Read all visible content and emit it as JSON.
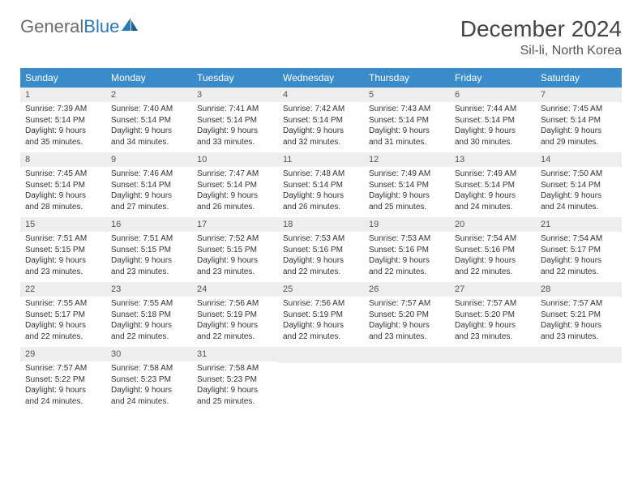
{
  "logo": {
    "word1": "General",
    "word2": "Blue"
  },
  "title": "December 2024",
  "location": "Sil-li, North Korea",
  "header_color": "#3a8bc9",
  "daynum_bg": "#eeeeee",
  "border_color": "#3a8bc9",
  "weekdays": [
    "Sunday",
    "Monday",
    "Tuesday",
    "Wednesday",
    "Thursday",
    "Friday",
    "Saturday"
  ],
  "weeks": [
    [
      {
        "n": "1",
        "sr": "7:39 AM",
        "ss": "5:14 PM",
        "dl": "9 hours and 35 minutes."
      },
      {
        "n": "2",
        "sr": "7:40 AM",
        "ss": "5:14 PM",
        "dl": "9 hours and 34 minutes."
      },
      {
        "n": "3",
        "sr": "7:41 AM",
        "ss": "5:14 PM",
        "dl": "9 hours and 33 minutes."
      },
      {
        "n": "4",
        "sr": "7:42 AM",
        "ss": "5:14 PM",
        "dl": "9 hours and 32 minutes."
      },
      {
        "n": "5",
        "sr": "7:43 AM",
        "ss": "5:14 PM",
        "dl": "9 hours and 31 minutes."
      },
      {
        "n": "6",
        "sr": "7:44 AM",
        "ss": "5:14 PM",
        "dl": "9 hours and 30 minutes."
      },
      {
        "n": "7",
        "sr": "7:45 AM",
        "ss": "5:14 PM",
        "dl": "9 hours and 29 minutes."
      }
    ],
    [
      {
        "n": "8",
        "sr": "7:45 AM",
        "ss": "5:14 PM",
        "dl": "9 hours and 28 minutes."
      },
      {
        "n": "9",
        "sr": "7:46 AM",
        "ss": "5:14 PM",
        "dl": "9 hours and 27 minutes."
      },
      {
        "n": "10",
        "sr": "7:47 AM",
        "ss": "5:14 PM",
        "dl": "9 hours and 26 minutes."
      },
      {
        "n": "11",
        "sr": "7:48 AM",
        "ss": "5:14 PM",
        "dl": "9 hours and 26 minutes."
      },
      {
        "n": "12",
        "sr": "7:49 AM",
        "ss": "5:14 PM",
        "dl": "9 hours and 25 minutes."
      },
      {
        "n": "13",
        "sr": "7:49 AM",
        "ss": "5:14 PM",
        "dl": "9 hours and 24 minutes."
      },
      {
        "n": "14",
        "sr": "7:50 AM",
        "ss": "5:14 PM",
        "dl": "9 hours and 24 minutes."
      }
    ],
    [
      {
        "n": "15",
        "sr": "7:51 AM",
        "ss": "5:15 PM",
        "dl": "9 hours and 23 minutes."
      },
      {
        "n": "16",
        "sr": "7:51 AM",
        "ss": "5:15 PM",
        "dl": "9 hours and 23 minutes."
      },
      {
        "n": "17",
        "sr": "7:52 AM",
        "ss": "5:15 PM",
        "dl": "9 hours and 23 minutes."
      },
      {
        "n": "18",
        "sr": "7:53 AM",
        "ss": "5:16 PM",
        "dl": "9 hours and 22 minutes."
      },
      {
        "n": "19",
        "sr": "7:53 AM",
        "ss": "5:16 PM",
        "dl": "9 hours and 22 minutes."
      },
      {
        "n": "20",
        "sr": "7:54 AM",
        "ss": "5:16 PM",
        "dl": "9 hours and 22 minutes."
      },
      {
        "n": "21",
        "sr": "7:54 AM",
        "ss": "5:17 PM",
        "dl": "9 hours and 22 minutes."
      }
    ],
    [
      {
        "n": "22",
        "sr": "7:55 AM",
        "ss": "5:17 PM",
        "dl": "9 hours and 22 minutes."
      },
      {
        "n": "23",
        "sr": "7:55 AM",
        "ss": "5:18 PM",
        "dl": "9 hours and 22 minutes."
      },
      {
        "n": "24",
        "sr": "7:56 AM",
        "ss": "5:19 PM",
        "dl": "9 hours and 22 minutes."
      },
      {
        "n": "25",
        "sr": "7:56 AM",
        "ss": "5:19 PM",
        "dl": "9 hours and 22 minutes."
      },
      {
        "n": "26",
        "sr": "7:57 AM",
        "ss": "5:20 PM",
        "dl": "9 hours and 23 minutes."
      },
      {
        "n": "27",
        "sr": "7:57 AM",
        "ss": "5:20 PM",
        "dl": "9 hours and 23 minutes."
      },
      {
        "n": "28",
        "sr": "7:57 AM",
        "ss": "5:21 PM",
        "dl": "9 hours and 23 minutes."
      }
    ],
    [
      {
        "n": "29",
        "sr": "7:57 AM",
        "ss": "5:22 PM",
        "dl": "9 hours and 24 minutes."
      },
      {
        "n": "30",
        "sr": "7:58 AM",
        "ss": "5:23 PM",
        "dl": "9 hours and 24 minutes."
      },
      {
        "n": "31",
        "sr": "7:58 AM",
        "ss": "5:23 PM",
        "dl": "9 hours and 25 minutes."
      },
      null,
      null,
      null,
      null
    ]
  ],
  "labels": {
    "sunrise": "Sunrise:",
    "sunset": "Sunset:",
    "daylight": "Daylight:"
  }
}
